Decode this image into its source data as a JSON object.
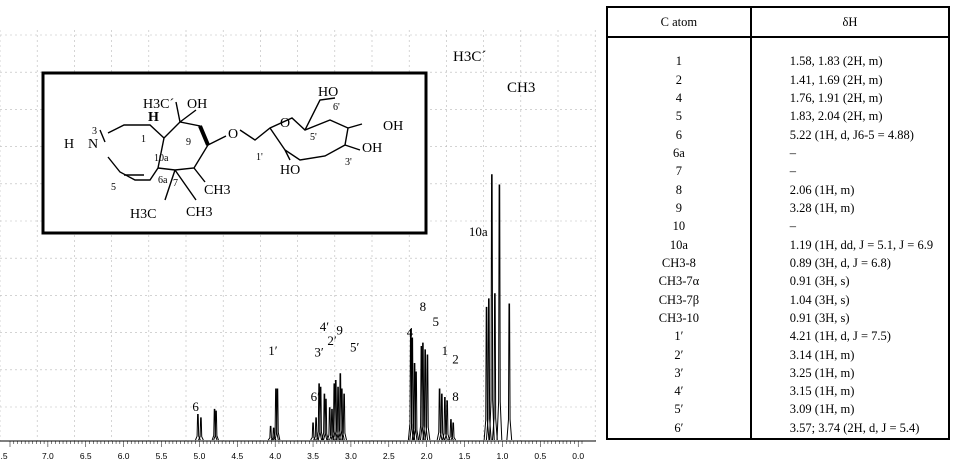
{
  "spectrum": {
    "x_axis": {
      "ticks": [
        ".5",
        "7.0",
        "6.5",
        "6.0",
        "5.5",
        "5.0",
        "4.5",
        "4.0",
        "3.5",
        "3.0",
        "2.5",
        "2.0",
        "1.5",
        "1.0",
        "0.5",
        "0.0"
      ],
      "range": [
        7.5,
        -0.05
      ]
    },
    "peak_labels": [
      {
        "text": "6",
        "ppm": 5.05,
        "height": 0.17
      },
      {
        "text": "1′",
        "ppm": 4.03,
        "height": 0.5
      },
      {
        "text": "6′",
        "ppm": 3.47,
        "height": 0.23
      },
      {
        "text": "3′",
        "ppm": 3.42,
        "height": 0.49
      },
      {
        "text": "4′",
        "ppm": 3.35,
        "height": 0.64
      },
      {
        "text": "2′",
        "ppm": 3.25,
        "height": 0.56
      },
      {
        "text": "9",
        "ppm": 3.15,
        "height": 0.62
      },
      {
        "text": "5′",
        "ppm": 2.95,
        "height": 0.52
      },
      {
        "text": "4",
        "ppm": 2.22,
        "height": 0.61
      },
      {
        "text": "8",
        "ppm": 2.05,
        "height": 0.76
      },
      {
        "text": "5",
        "ppm": 1.88,
        "height": 0.67
      },
      {
        "text": "1",
        "ppm": 1.76,
        "height": 0.5
      },
      {
        "text": "2",
        "ppm": 1.62,
        "height": 0.45
      },
      {
        "text": "8",
        "ppm": 1.62,
        "height": 0.23
      },
      {
        "text": "10a",
        "ppm": 1.32,
        "height": 1.2
      }
    ],
    "methyl_labels": {
      "h3c_prime": "H3C´",
      "ch3": "CH3"
    },
    "peaks": [
      {
        "ppm": 5.02,
        "height": 0.15
      },
      {
        "ppm": 4.98,
        "height": 0.13
      },
      {
        "ppm": 4.8,
        "height": 0.18
      },
      {
        "ppm": 4.78,
        "height": 0.17
      },
      {
        "ppm": 4.06,
        "height": 0.08
      },
      {
        "ppm": 4.02,
        "height": 0.07
      },
      {
        "ppm": 3.99,
        "height": 0.3
      },
      {
        "ppm": 3.97,
        "height": 0.3
      },
      {
        "ppm": 3.5,
        "height": 0.1
      },
      {
        "ppm": 3.46,
        "height": 0.13
      },
      {
        "ppm": 3.42,
        "height": 0.33
      },
      {
        "ppm": 3.4,
        "height": 0.31
      },
      {
        "ppm": 3.35,
        "height": 0.27
      },
      {
        "ppm": 3.33,
        "height": 0.24
      },
      {
        "ppm": 3.28,
        "height": 0.19
      },
      {
        "ppm": 3.25,
        "height": 0.18
      },
      {
        "ppm": 3.22,
        "height": 0.33
      },
      {
        "ppm": 3.2,
        "height": 0.35
      },
      {
        "ppm": 3.17,
        "height": 0.31
      },
      {
        "ppm": 3.14,
        "height": 0.39
      },
      {
        "ppm": 3.12,
        "height": 0.3
      },
      {
        "ppm": 3.09,
        "height": 0.27
      },
      {
        "ppm": 2.21,
        "height": 0.65
      },
      {
        "ppm": 2.19,
        "height": 0.6
      },
      {
        "ppm": 2.16,
        "height": 0.45
      },
      {
        "ppm": 2.14,
        "height": 0.4
      },
      {
        "ppm": 2.07,
        "height": 0.55
      },
      {
        "ppm": 2.05,
        "height": 0.57
      },
      {
        "ppm": 2.02,
        "height": 0.53
      },
      {
        "ppm": 1.99,
        "height": 0.5
      },
      {
        "ppm": 1.83,
        "height": 0.3
      },
      {
        "ppm": 1.8,
        "height": 0.27
      },
      {
        "ppm": 1.76,
        "height": 0.25
      },
      {
        "ppm": 1.73,
        "height": 0.23
      },
      {
        "ppm": 1.68,
        "height": 0.12
      },
      {
        "ppm": 1.65,
        "height": 0.1
      },
      {
        "ppm": 1.21,
        "height": 0.78
      },
      {
        "ppm": 1.18,
        "height": 0.83
      },
      {
        "ppm": 1.14,
        "height": 1.56
      },
      {
        "ppm": 1.1,
        "height": 0.86
      },
      {
        "ppm": 1.04,
        "height": 1.5
      },
      {
        "ppm": 0.91,
        "height": 0.8
      }
    ]
  },
  "structure": {
    "atoms": {
      "n": "N",
      "h_n": "H",
      "n3": "3",
      "h10a": "H",
      "c1": "1",
      "c10a": "10a",
      "c6a": "6a",
      "c5": "5",
      "c7": "7",
      "c9": "9",
      "oh_top": "OH",
      "ch3_top": "H3C´",
      "ch3_8": "CH3",
      "ch3_7b": "CH3",
      "ch3_7a": "H3C",
      "o_link": "O",
      "o_ring": "O",
      "c1p": "1'",
      "c5p": "5'",
      "c6p": "6'",
      "c3p": "3'",
      "ho_6p": "HO",
      "ho_2p": "HO",
      "oh_3p": "OH",
      "oh_4p": "OH"
    }
  },
  "table": {
    "headers": [
      "C atom",
      "δH"
    ],
    "rows": [
      {
        "atom": "1",
        "shift": "1.58, 1.83 (2H, m)"
      },
      {
        "atom": "2",
        "shift": "1.41, 1.69 (2H, m)"
      },
      {
        "atom": "4",
        "shift": "1.76, 1.91 (2H, m)"
      },
      {
        "atom": "5",
        "shift": "1.83, 2.04 (2H, m)"
      },
      {
        "atom": "6",
        "shift": "5.22 (1H, d, J6-5 = 4.88)"
      },
      {
        "atom": "6a",
        "shift": "–"
      },
      {
        "atom": "7",
        "shift": "–"
      },
      {
        "atom": "8",
        "shift": "2.06 (1H, m)"
      },
      {
        "atom": "9",
        "shift": "3.28 (1H, m)"
      },
      {
        "atom": "10",
        "shift": "–"
      },
      {
        "atom": "10a",
        "shift": "1.19 (1H, dd, J = 5.1, J = 6.9"
      },
      {
        "atom": "CH3-8",
        "shift": "0.89 (3H, d, J = 6.8)"
      },
      {
        "atom": "CH3-7α",
        "shift": "0.91 (3H, s)"
      },
      {
        "atom": "CH3-7β",
        "shift": "1.04 (3H, s)"
      },
      {
        "atom": "CH3-10",
        "shift": "0.91 (3H, s)"
      },
      {
        "atom": "1′",
        "shift": "4.21 (1H, d, J = 7.5)"
      },
      {
        "atom": "2′",
        "shift": "3.14 (1H, m)"
      },
      {
        "atom": "3′",
        "shift": "3.25 (1H, m)"
      },
      {
        "atom": "4′",
        "shift": "3.15 (1H, m)"
      },
      {
        "atom": "5′",
        "shift": "3.09 (1H, m)"
      },
      {
        "atom": "6′",
        "shift": "3.57; 3.74 (2H, d, J = 5.4)"
      }
    ]
  }
}
